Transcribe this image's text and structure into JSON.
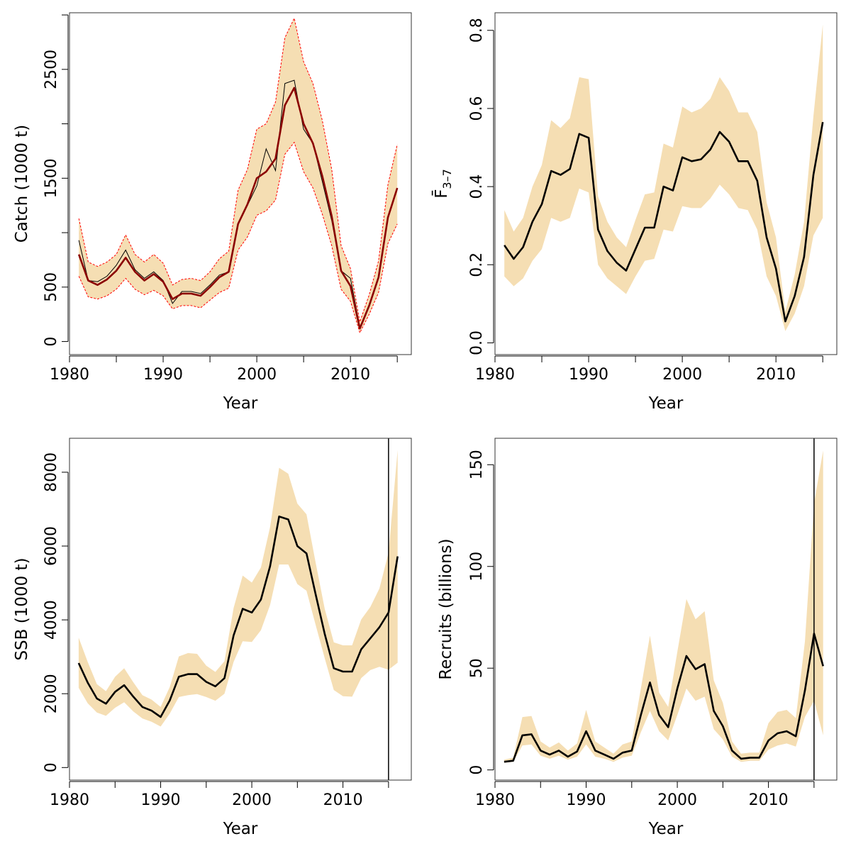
{
  "colors": {
    "band": "#f5deb3",
    "main_line": "#000000",
    "catch_line": "#8b0000",
    "catch_bounds": "#ff0000",
    "observed_line": "#000000"
  },
  "chart_data": [
    {
      "id": "catch",
      "type": "line",
      "xlabel": "Year",
      "ylabel": "Catch (1000 t)",
      "xlim": [
        1980,
        2016.5
      ],
      "ylim": [
        -120,
        3020
      ],
      "xticks": [
        1980,
        1985,
        1990,
        1995,
        2000,
        2005,
        2010,
        2015
      ],
      "xtick_labels": [
        "1980",
        "",
        "1990",
        "",
        "2000",
        "",
        "2010",
        ""
      ],
      "yticks": [
        0,
        500,
        1000,
        1500,
        2000,
        2500,
        3000
      ],
      "ytick_labels": [
        "0",
        "500",
        "",
        "1500",
        "",
        "2500",
        ""
      ],
      "x": [
        1981,
        1982,
        1983,
        1984,
        1985,
        1986,
        1987,
        1988,
        1989,
        1990,
        1991,
        1992,
        1993,
        1994,
        1995,
        1996,
        1997,
        1998,
        1999,
        2000,
        2001,
        2002,
        2003,
        2004,
        2005,
        2006,
        2007,
        2008,
        2009,
        2010,
        2011,
        2012,
        2013,
        2014,
        2015
      ],
      "estimate": [
        800,
        560,
        520,
        570,
        650,
        770,
        640,
        560,
        620,
        550,
        390,
        440,
        440,
        420,
        500,
        590,
        640,
        1080,
        1260,
        1500,
        1560,
        1680,
        2170,
        2330,
        2000,
        1820,
        1520,
        1150,
        650,
        510,
        120,
        330,
        590,
        1140,
        1410
      ],
      "lower": [
        600,
        410,
        390,
        420,
        480,
        580,
        480,
        430,
        470,
        420,
        300,
        330,
        330,
        310,
        380,
        450,
        490,
        840,
        960,
        1160,
        1200,
        1300,
        1720,
        1830,
        1560,
        1410,
        1170,
        880,
        480,
        370,
        80,
        250,
        450,
        900,
        1080
      ],
      "upper": [
        1130,
        730,
        690,
        730,
        800,
        980,
        800,
        730,
        800,
        720,
        520,
        570,
        580,
        560,
        640,
        760,
        830,
        1390,
        1580,
        1950,
        2000,
        2200,
        2790,
        2970,
        2570,
        2370,
        2030,
        1580,
        880,
        670,
        180,
        430,
        740,
        1440,
        1810
      ],
      "observed": [
        930,
        560,
        550,
        600,
        700,
        840,
        660,
        580,
        640,
        560,
        350,
        460,
        460,
        440,
        520,
        610,
        640,
        1090,
        1250,
        1430,
        1770,
        1570,
        2370,
        2400,
        1950,
        1820,
        1470,
        1110,
        650,
        580,
        130,
        320,
        590,
        1130,
        1410
      ]
    },
    {
      "id": "fbar",
      "type": "line",
      "xlabel": "Year",
      "ylabel": "F̄3–7",
      "xlim": [
        1980,
        2016.5
      ],
      "ylim": [
        -0.03,
        0.845
      ],
      "xticks": [
        1980,
        1985,
        1990,
        1995,
        2000,
        2005,
        2010,
        2015
      ],
      "xtick_labels": [
        "1980",
        "",
        "1990",
        "",
        "2000",
        "",
        "2010",
        ""
      ],
      "yticks": [
        0,
        0.2,
        0.4,
        0.6,
        0.8
      ],
      "ytick_labels": [
        "0.0",
        "0.2",
        "0.4",
        "0.6",
        "0.8"
      ],
      "x": [
        1981,
        1982,
        1983,
        1984,
        1985,
        1986,
        1987,
        1988,
        1989,
        1990,
        1991,
        1992,
        1993,
        1994,
        1995,
        1996,
        1997,
        1998,
        1999,
        2000,
        2001,
        2002,
        2003,
        2004,
        2005,
        2006,
        2007,
        2008,
        2009,
        2010,
        2011,
        2012,
        2013,
        2014,
        2015
      ],
      "estimate": [
        0.25,
        0.215,
        0.245,
        0.31,
        0.355,
        0.44,
        0.43,
        0.445,
        0.535,
        0.525,
        0.29,
        0.235,
        0.205,
        0.185,
        0.24,
        0.295,
        0.295,
        0.4,
        0.39,
        0.475,
        0.465,
        0.47,
        0.495,
        0.54,
        0.515,
        0.465,
        0.465,
        0.415,
        0.27,
        0.19,
        0.055,
        0.12,
        0.22,
        0.43,
        0.565
      ],
      "lower": [
        0.17,
        0.145,
        0.165,
        0.21,
        0.24,
        0.32,
        0.31,
        0.32,
        0.395,
        0.385,
        0.2,
        0.165,
        0.145,
        0.125,
        0.17,
        0.21,
        0.215,
        0.29,
        0.285,
        0.35,
        0.345,
        0.345,
        0.37,
        0.405,
        0.38,
        0.345,
        0.34,
        0.29,
        0.17,
        0.12,
        0.03,
        0.075,
        0.145,
        0.275,
        0.32
      ],
      "upper": [
        0.34,
        0.285,
        0.32,
        0.4,
        0.455,
        0.57,
        0.55,
        0.575,
        0.68,
        0.675,
        0.375,
        0.31,
        0.27,
        0.245,
        0.315,
        0.38,
        0.385,
        0.51,
        0.5,
        0.605,
        0.59,
        0.6,
        0.625,
        0.68,
        0.645,
        0.59,
        0.59,
        0.54,
        0.36,
        0.27,
        0.08,
        0.175,
        0.31,
        0.58,
        0.815
      ]
    },
    {
      "id": "ssb",
      "type": "line",
      "xlabel": "Year",
      "ylabel": "SSB (1000 t)",
      "xlim": [
        1980,
        2017.5
      ],
      "ylim": [
        -340,
        8920
      ],
      "xticks": [
        1980,
        1985,
        1990,
        1995,
        2000,
        2005,
        2010,
        2015
      ],
      "xtick_labels": [
        "1980",
        "",
        "1990",
        "",
        "2000",
        "",
        "2010",
        ""
      ],
      "yticks": [
        0,
        2000,
        4000,
        6000,
        8000
      ],
      "ytick_labels": [
        "0",
        "2000",
        "4000",
        "6000",
        "8000"
      ],
      "vline_x": 2015,
      "x": [
        1981,
        1982,
        1983,
        1984,
        1985,
        1986,
        1987,
        1988,
        1989,
        1990,
        1991,
        1992,
        1993,
        1994,
        1995,
        1996,
        1997,
        1998,
        1999,
        2000,
        2001,
        2002,
        2003,
        2004,
        2005,
        2006,
        2007,
        2008,
        2009,
        2010,
        2011,
        2012,
        2013,
        2014,
        2015,
        2016
      ],
      "estimate": [
        2830,
        2300,
        1870,
        1730,
        2050,
        2230,
        1920,
        1640,
        1540,
        1370,
        1820,
        2460,
        2530,
        2530,
        2320,
        2200,
        2420,
        3580,
        4300,
        4200,
        4550,
        5450,
        6800,
        6720,
        6000,
        5800,
        4700,
        3620,
        2690,
        2600,
        2600,
        3200,
        3500,
        3800,
        4200,
        5720
      ],
      "lower": [
        2160,
        1740,
        1490,
        1400,
        1620,
        1770,
        1520,
        1330,
        1240,
        1110,
        1460,
        1910,
        1960,
        1990,
        1910,
        1810,
        2000,
        2860,
        3420,
        3400,
        3720,
        4400,
        5500,
        5500,
        4970,
        4790,
        3870,
        2960,
        2100,
        1930,
        1920,
        2420,
        2640,
        2730,
        2650,
        2840
      ],
      "upper": [
        3520,
        2860,
        2260,
        2070,
        2460,
        2690,
        2310,
        1960,
        1840,
        1640,
        2180,
        3010,
        3100,
        3080,
        2760,
        2590,
        2880,
        4320,
        5200,
        5010,
        5420,
        6510,
        8120,
        7960,
        7150,
        6860,
        5560,
        4300,
        3390,
        3310,
        3310,
        4010,
        4350,
        4850,
        5820,
        8600
      ]
    },
    {
      "id": "recruits",
      "type": "line",
      "xlabel": "Year",
      "ylabel": "Recruits (billions)",
      "xlim": [
        1980,
        2017.5
      ],
      "ylim": [
        -5,
        163
      ],
      "xticks": [
        1980,
        1985,
        1990,
        1995,
        2000,
        2005,
        2010,
        2015
      ],
      "xtick_labels": [
        "1980",
        "",
        "1990",
        "",
        "2000",
        "",
        "2010",
        ""
      ],
      "yticks": [
        0,
        50,
        100,
        150
      ],
      "ytick_labels": [
        "0",
        "50",
        "100",
        "150"
      ],
      "vline_x": 2015,
      "x": [
        1981,
        1982,
        1983,
        1984,
        1985,
        1986,
        1987,
        1988,
        1989,
        1990,
        1991,
        1992,
        1993,
        1994,
        1995,
        1996,
        1997,
        1998,
        1999,
        2000,
        2001,
        2002,
        2003,
        2004,
        2005,
        2006,
        2007,
        2008,
        2009,
        2010,
        2011,
        2012,
        2013,
        2014,
        2015,
        2016
      ],
      "estimate": [
        4,
        4.5,
        17,
        17.5,
        9.5,
        7.5,
        9.5,
        6.5,
        9,
        19,
        9.5,
        7.5,
        5.5,
        8.5,
        9.5,
        27,
        43,
        27,
        21,
        40,
        56,
        49.5,
        52,
        29,
        21.5,
        9.5,
        5.5,
        6,
        6,
        14.5,
        18,
        19,
        16.5,
        39,
        67,
        51
      ],
      "lower": [
        3.5,
        4,
        12,
        12.5,
        7,
        5.5,
        7,
        5,
        6.5,
        12.5,
        6.5,
        5.5,
        4,
        6,
        7,
        18.5,
        29,
        19,
        14.5,
        27,
        40,
        34,
        36,
        20,
        15,
        6.5,
        4,
        4.5,
        4.5,
        10,
        12,
        13,
        11.5,
        26,
        34,
        17
      ],
      "upper": [
        5,
        6,
        26,
        26.5,
        14,
        11,
        13.5,
        9.5,
        13,
        29.5,
        14,
        11,
        8,
        12.5,
        14,
        40,
        66,
        38,
        31,
        58,
        84,
        74,
        78,
        44,
        33,
        14,
        8,
        8.5,
        8.5,
        23,
        28.5,
        29.5,
        25.5,
        63,
        131,
        157
      ]
    }
  ]
}
